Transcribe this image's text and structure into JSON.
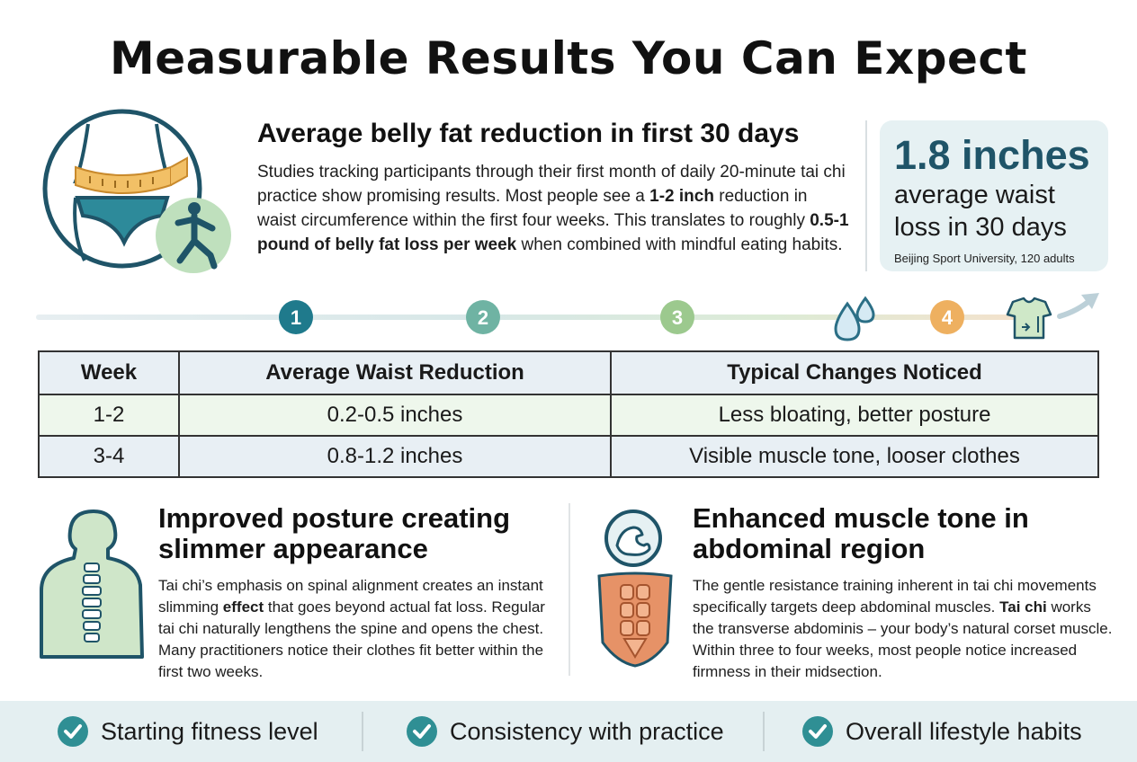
{
  "title": "Measurable Results You Can Expect",
  "intro": {
    "heading": "Average belly fat reduction in first 30 days",
    "p1": "Studies tracking participants through their first month of daily 20-minute tai chi practice show promising results. Most people see a ",
    "p1_bold": "1-2 inch",
    "p2": " reduction in waist circumference within the first four weeks. This translates to roughly ",
    "p2_bold": "0.5-1 pound of belly fat loss per week",
    "p3": " when combined with mindful eating habits."
  },
  "stat": {
    "value": "1.8 inches",
    "label_line1": "average waist",
    "label_line2": "loss in 30 days",
    "source": "Beijing Sport University, 120 adults"
  },
  "timeline": {
    "steps": [
      "1",
      "2",
      "3",
      "4"
    ],
    "colors": [
      "#1f7a8c",
      "#6fb3a3",
      "#9cc98e",
      "#eeb060"
    ],
    "icons": [
      "water-drops-icon",
      "tshirt-icon",
      "arrow-up-right-icon"
    ]
  },
  "table": {
    "headers": [
      "Week",
      "Average Waist Reduction",
      "Typical Changes Noticed"
    ],
    "rows": [
      [
        "1-2",
        "0.2-0.5 inches",
        "Less bloating, better posture"
      ],
      [
        "3-4",
        "0.8-1.2 inches",
        "Visible muscle tone, looser clothes"
      ]
    ]
  },
  "posture": {
    "heading": "Improved posture creating slimmer appearance",
    "p1": "Tai chi’s emphasis on spinal alignment creates an instant slimming ",
    "p1_bold": "effect",
    "p2": " that goes beyond actual fat loss. Regular tai chi naturally lengthens the spine and opens the chest. Many practitioners notice their clothes fit better within the first two weeks."
  },
  "muscle": {
    "heading": "Enhanced muscle tone in abdominal region",
    "p1": "The gentle resistance training inherent in tai chi movements specifically targets deep abdominal muscles. ",
    "p1_bold": "Tai chi",
    "p2": " works the transverse abdominis – your body’s natural corset muscle. Within three to four weeks, most people notice increased firmness in their midsection."
  },
  "footer": {
    "items": [
      "Starting fitness level",
      "Consistency with practice",
      "Overall lifestyle habits"
    ],
    "check_color": "#2f8f94"
  }
}
